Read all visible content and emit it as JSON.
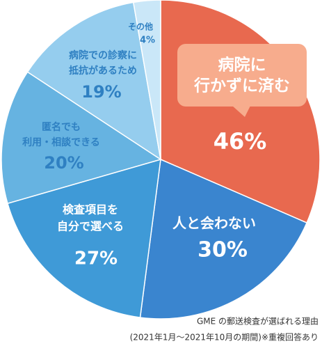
{
  "chart_data": {
    "type": "pie",
    "categories": [
      [
        "病院に",
        "行かずに済む"
      ],
      [
        "人と会わない"
      ],
      [
        "検査項目を",
        "自分で選べる"
      ],
      [
        "匿名でも",
        "利用・相談できる"
      ],
      [
        "病院での診察に",
        "抵抗があるため"
      ],
      [
        "その他"
      ]
    ],
    "values": [
      46,
      30,
      27,
      20,
      19,
      4
    ],
    "value_labels": [
      "46%",
      "30%",
      "27%",
      "20%",
      "19%",
      "4%"
    ],
    "colors": [
      "#e8694f",
      "#3a85cf",
      "#3f9ad7",
      "#66b3e1",
      "#95cdee",
      "#cae7f8"
    ],
    "label_colors": [
      "#ffffff",
      "#ffffff",
      "#ffffff",
      "#2f80c2",
      "#2f80c2",
      "#2f80c2"
    ],
    "notes": [
      "GME の郵送検査が選ばれる理由",
      "(2021年1月～2021年10月の期間)※重複回答あり"
    ]
  }
}
